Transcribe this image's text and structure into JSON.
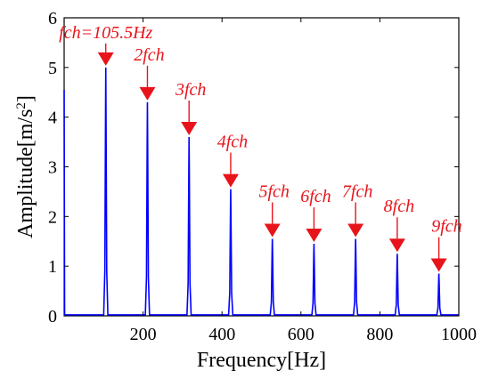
{
  "chart_data": {
    "type": "line",
    "xlabel": "Frequency[Hz]",
    "ylabel": "Amplitude[m/s",
    "ylabel_sup": "2",
    "ylabel_close": "]",
    "xlim": [
      0,
      1000
    ],
    "ylim": [
      0,
      6
    ],
    "xticks": [
      200,
      400,
      600,
      800,
      1000
    ],
    "yticks": [
      0,
      1,
      2,
      3,
      4,
      5,
      6
    ],
    "grid": false,
    "colors": {
      "line": "#0000ff",
      "annotation": "#e8141b"
    },
    "baseline_start_spike": 4.55,
    "peaks": [
      {
        "x": 105.5,
        "y": 5.0,
        "label": "fch=105.5Hz"
      },
      {
        "x": 211,
        "y": 4.3,
        "label": "2fch"
      },
      {
        "x": 316.5,
        "y": 3.6,
        "label": "3fch"
      },
      {
        "x": 422,
        "y": 2.55,
        "label": "4fch"
      },
      {
        "x": 527.5,
        "y": 1.55,
        "label": "5fch"
      },
      {
        "x": 633,
        "y": 1.45,
        "label": "6fch"
      },
      {
        "x": 738.5,
        "y": 1.55,
        "label": "7fch"
      },
      {
        "x": 844,
        "y": 1.25,
        "label": "8fch"
      },
      {
        "x": 949.5,
        "y": 0.85,
        "label": "9fch"
      }
    ]
  }
}
